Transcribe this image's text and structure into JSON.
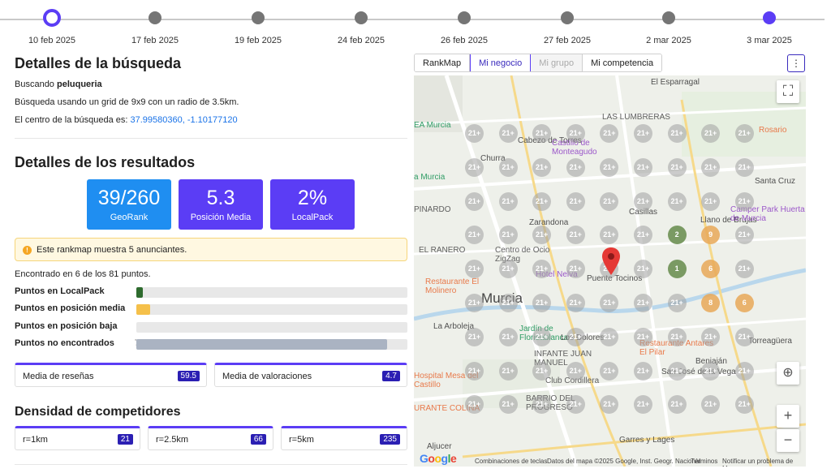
{
  "timeline": {
    "dates": [
      "10 feb 2025",
      "17 feb 2025",
      "19 feb 2025",
      "24 feb 2025",
      "26 feb 2025",
      "27 feb 2025",
      "2 mar 2025",
      "3 mar 2025"
    ]
  },
  "search": {
    "title": "Detalles de la búsqueda",
    "searching_prefix": "Buscando",
    "keyword": "peluqueria",
    "grid_text": "Búsqueda usando un grid de 9x9 con un radio de 3.5km.",
    "center_prefix": "El centro de la búsqueda es:",
    "center_coords": "37.99580360, -1.10177120"
  },
  "results": {
    "title": "Detalles de los resultados",
    "kpis": [
      {
        "value": "39/260",
        "label": "GeoRank",
        "color": "#1f8ef1"
      },
      {
        "value": "5.3",
        "label": "Posición Media",
        "color": "#5b3df5"
      },
      {
        "value": "2%",
        "label": "LocalPack",
        "color": "#5b3df5"
      }
    ],
    "notice": "Este rankmap muestra 5 anunciantes.",
    "found_text": "Encontrado en 6 de los 81 puntos.",
    "metrics": [
      {
        "label": "Puntos en LocalPack",
        "value": "2",
        "fraction": 0.025,
        "color": "#2e6b2e",
        "value_color": "#2e6b2e"
      },
      {
        "label": "Puntos en posición media",
        "value": "4",
        "fraction": 0.05,
        "color": "#f5c04a",
        "value_color": "#e0a030"
      },
      {
        "label": "Puntos en posición baja",
        "value": "0",
        "fraction": 0.0,
        "color": "#e25b2b",
        "value_color": "#d14a1a"
      },
      {
        "label": "Puntos no encontrados",
        "value": "75",
        "fraction": 0.926,
        "color": "#aab3c2",
        "value_color": "#777777"
      }
    ],
    "reviews_label": "Media de reseñas",
    "reviews_value": "59.5",
    "ratings_label": "Media de valoraciones",
    "ratings_value": "4.7"
  },
  "density": {
    "title": "Densidad de competidores",
    "items": [
      {
        "label": "r=1km",
        "value": "21"
      },
      {
        "label": "r=2.5km",
        "value": "66"
      },
      {
        "label": "r=5km",
        "value": "235"
      }
    ]
  },
  "map": {
    "tabs": [
      "RankMap",
      "Mi negocio",
      "Mi grupo",
      "Mi competencia"
    ],
    "active_tab": "Mi negocio",
    "disabled_tab": "Mi grupo",
    "more_icon": "vertical-dots-icon",
    "grid_default_label": "21+",
    "grid_special": [
      {
        "row": 3,
        "col": 6,
        "label": "2",
        "kind": "green"
      },
      {
        "row": 3,
        "col": 7,
        "label": "9",
        "kind": "orange"
      },
      {
        "row": 4,
        "col": 6,
        "label": "1",
        "kind": "green"
      },
      {
        "row": 4,
        "col": 7,
        "label": "6",
        "kind": "orange"
      },
      {
        "row": 5,
        "col": 7,
        "label": "8",
        "kind": "orange"
      },
      {
        "row": 5,
        "col": 8,
        "label": "6",
        "kind": "orange"
      }
    ],
    "places": [
      {
        "name": "El Esparragal",
        "kind": "dark"
      },
      {
        "name": "LAS LUMBRERAS",
        "kind": ""
      },
      {
        "name": "Cabezo de Torres",
        "kind": "dark"
      },
      {
        "name": "Castillo de Monteagudo",
        "kind": "purple"
      },
      {
        "name": "Rosario",
        "kind": "orange"
      },
      {
        "name": "Churra",
        "kind": "dark"
      },
      {
        "name": "EA Murcia",
        "kind": "green"
      },
      {
        "name": "a Murcia",
        "kind": "green"
      },
      {
        "name": "Santa Cruz",
        "kind": "dark"
      },
      {
        "name": "PINARDO",
        "kind": ""
      },
      {
        "name": "Casillas",
        "kind": "dark"
      },
      {
        "name": "Llano de Brujas",
        "kind": "dark"
      },
      {
        "name": "Zarandona",
        "kind": "dark"
      },
      {
        "name": "Camper Park Huerta de Murcia",
        "kind": "purple"
      },
      {
        "name": "EL RANERO",
        "kind": ""
      },
      {
        "name": "Centro de Ocio ZigZag",
        "kind": ""
      },
      {
        "name": "Hotel Nelva",
        "kind": "purple"
      },
      {
        "name": "Puente Tocinos",
        "kind": "dark"
      },
      {
        "name": "Restaurante El Molinero",
        "kind": "orange"
      },
      {
        "name": "Murcia",
        "kind": "big"
      },
      {
        "name": "La Arboleja",
        "kind": "dark"
      },
      {
        "name": "Jardín de Floridablanca",
        "kind": "green"
      },
      {
        "name": "Torreagüera",
        "kind": "dark"
      },
      {
        "name": "INFANTE JUAN MANUEL",
        "kind": ""
      },
      {
        "name": "Restaurante Antares El Pilar",
        "kind": "orange"
      },
      {
        "name": "Beniaján",
        "kind": "dark"
      },
      {
        "name": "Hospital Mesa del Castillo",
        "kind": "orange"
      },
      {
        "name": "Club Cordillera",
        "kind": ""
      },
      {
        "name": "San José de la Vega",
        "kind": "dark"
      },
      {
        "name": "URANTE COLINA",
        "kind": "orange"
      },
      {
        "name": "BARRIO DEL PROGRESO",
        "kind": ""
      },
      {
        "name": "Garres y Lages",
        "kind": "dark"
      },
      {
        "name": "Aljucer",
        "kind": "dark"
      },
      {
        "name": "Los Dolores",
        "kind": "dark"
      }
    ],
    "google_logo": "Google",
    "attribution": {
      "shortcuts": "Combinaciones de teclas",
      "data": "Datos del mapa ©2025 Google, Inst. Geogr. Nacional",
      "terms": "Términos",
      "report": "Notificar un problema de Maps"
    },
    "controls": {
      "fullscreen_icon": "fullscreen-icon",
      "recenter_icon": "recenter-icon",
      "zoom_in": "+",
      "zoom_out": "−"
    }
  }
}
